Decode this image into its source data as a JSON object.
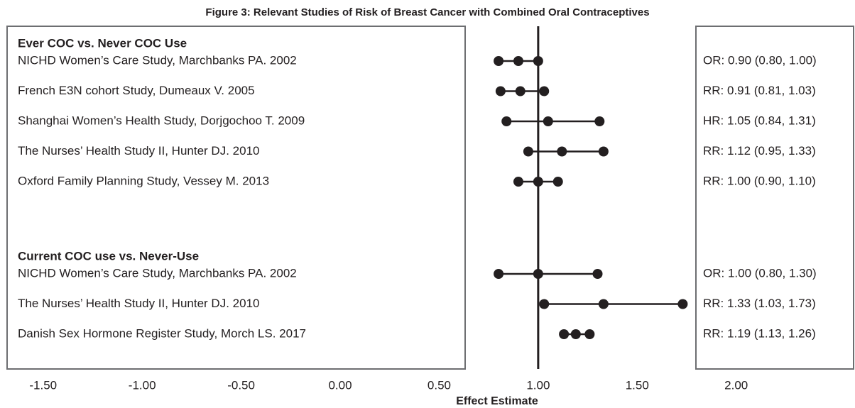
{
  "chart_data": {
    "type": "forest",
    "title": "Figure 3: Relevant Studies of Risk of Breast Cancer with Combined Oral Contraceptives",
    "xlabel": "Effect Estimate",
    "xlim": [
      -1.7,
      2.6
    ],
    "xticks": [
      {
        "value": -1.5,
        "label": "-1.50"
      },
      {
        "value": -1,
        "label": "-1.00"
      },
      {
        "value": -0.5,
        "label": "-0.50"
      },
      {
        "value": 0,
        "label": "0.00"
      },
      {
        "value": 0.5,
        "label": "0.50"
      },
      {
        "value": 1,
        "label": "1.00"
      },
      {
        "value": 1.5,
        "label": "1.50"
      },
      {
        "value": 2,
        "label": "2.00"
      }
    ],
    "reference": 1,
    "color": "#231f20",
    "groups": [
      {
        "name": "Ever COC vs. Never COC Use",
        "categories": [
          "NICHD Women’s Care Study, Marchbanks PA. 2002",
          "French E3N cohort Study, Dumeaux V. 2005",
          "Shanghai Women’s Health Study, Dorjgochoo T. 2009",
          "The Nurses’ Health Study II, Hunter DJ. 2010",
          "Oxford Family Planning Study, Vessey M. 2013"
        ],
        "values": [
          0.9,
          0.91,
          1.05,
          1.12,
          1.0
        ],
        "lower": [
          0.8,
          0.81,
          0.84,
          0.95,
          0.9
        ],
        "upper": [
          1.0,
          1.03,
          1.31,
          1.33,
          1.1
        ],
        "value_labels": [
          "OR: 0.90 (0.80, 1.00)",
          "RR: 0.91 (0.81, 1.03)",
          "HR: 1.05 (0.84, 1.31)",
          "RR: 1.12 (0.95, 1.33)",
          "RR: 1.00 (0.90, 1.10)"
        ]
      },
      {
        "name": "Current COC use vs. Never-Use",
        "categories": [
          "NICHD Women’s Care Study, Marchbanks PA. 2002",
          "The Nurses’ Health Study II, Hunter DJ. 2010",
          "Danish Sex Hormone Register Study, Morch LS. 2017"
        ],
        "values": [
          1.0,
          1.33,
          1.19
        ],
        "lower": [
          0.8,
          1.03,
          1.13
        ],
        "upper": [
          1.3,
          1.73,
          1.26
        ],
        "value_labels": [
          "OR: 1.00 (0.80, 1.30)",
          "RR: 1.33 (1.03, 1.73)",
          "RR: 1.19 (1.13, 1.26)"
        ]
      }
    ]
  }
}
